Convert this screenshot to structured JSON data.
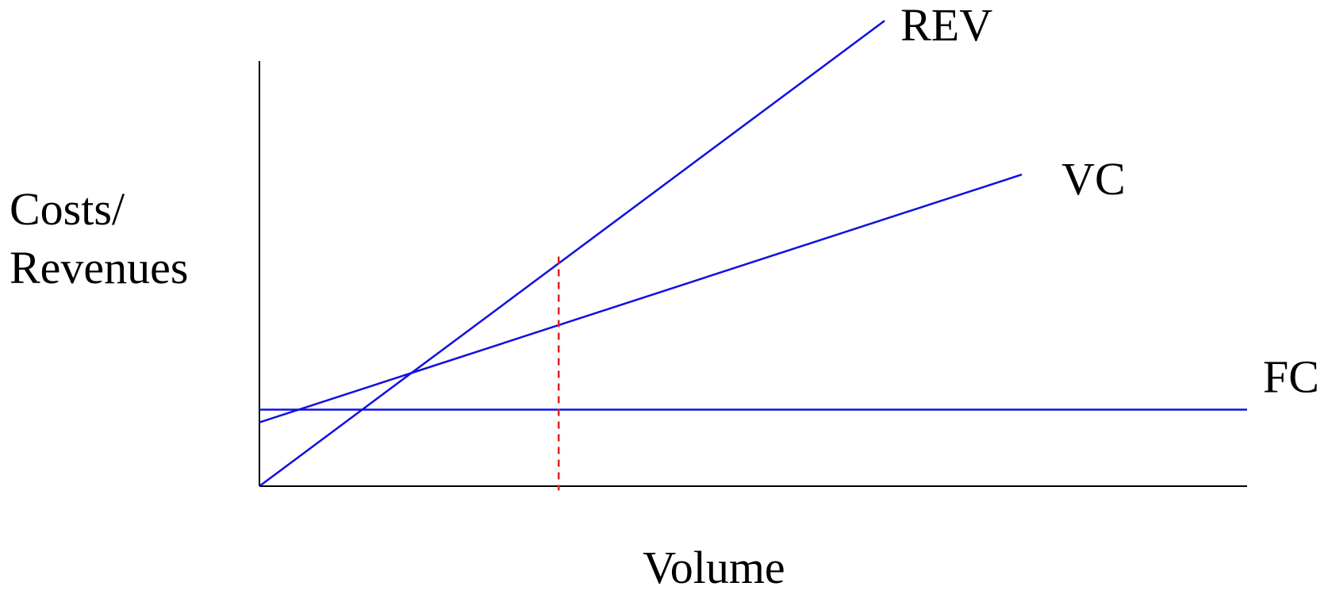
{
  "chart_data": {
    "type": "line",
    "title": "",
    "xlabel": "Volume",
    "ylabel_lines": [
      "Costs/",
      "Revenues"
    ],
    "xlim": [
      0,
      10
    ],
    "ylim": [
      0,
      10
    ],
    "grid": false,
    "legend": "none",
    "series": [
      {
        "name": "REV",
        "x": [
          0,
          6.33
        ],
        "y": [
          0,
          10.95
        ],
        "color": "#1010e0"
      },
      {
        "name": "VC",
        "x": [
          0,
          7.72
        ],
        "y": [
          1.5,
          7.33
        ],
        "color": "#1010e0"
      },
      {
        "name": "FC",
        "x": [
          0,
          10
        ],
        "y": [
          1.8,
          1.8
        ],
        "color": "#1010e0"
      }
    ],
    "reference_lines": [
      {
        "x": 3.03,
        "y": [
          -0.1,
          5.4
        ],
        "style": "dashed",
        "color": "#e02020"
      }
    ],
    "axis_color": "#000000"
  }
}
